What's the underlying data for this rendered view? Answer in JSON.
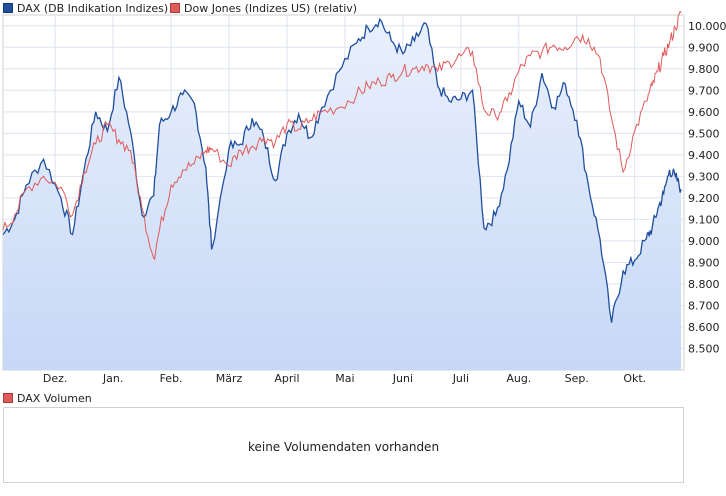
{
  "legend": {
    "dax": {
      "label": "DAX (DB Indikation Indizes)",
      "color": "#1f4f9e"
    },
    "dow": {
      "label": "Dow Jones (Indizes US) (relativ)",
      "color": "#e05a5a"
    }
  },
  "volume": {
    "legend_label": "DAX Volumen",
    "legend_color": "#e05a5a",
    "message": "keine Volumendaten vorhanden"
  },
  "chart_data": {
    "type": "line",
    "y_ticks": [
      "10.000",
      "9.900",
      "9.800",
      "9.700",
      "9.600",
      "9.500",
      "9.400",
      "9.300",
      "9.200",
      "9.100",
      "9.000",
      "8.900",
      "8.800",
      "8.700",
      "8.600",
      "8.500"
    ],
    "ylim": [
      8400,
      10050
    ],
    "x_ticks": [
      "Dez.",
      "Jan.",
      "Feb.",
      "März",
      "April",
      "Mai",
      "Juni",
      "Juli",
      "Aug.",
      "Sep.",
      "Okt."
    ],
    "x_tick_pos": [
      0.5,
      1.5,
      2.5,
      3.5,
      4.5,
      5.5,
      6.5,
      7.5,
      8.5,
      9.5,
      10.5
    ],
    "xlim": [
      -0.4,
      11.35
    ],
    "grid": true,
    "legend_position": "top-left",
    "series": [
      {
        "name": "DAX (DB Indikation Indizes)",
        "color": "#1f4f9e",
        "fill": true,
        "x": [
          -0.4,
          -0.2,
          0.0,
          0.3,
          0.6,
          0.8,
          1.0,
          1.2,
          1.4,
          1.6,
          1.8,
          2.0,
          2.2,
          2.3,
          2.5,
          2.7,
          2.9,
          3.1,
          3.2,
          3.5,
          3.7,
          3.9,
          4.1,
          4.3,
          4.5,
          4.7,
          4.9,
          5.1,
          5.4,
          5.7,
          5.9,
          6.1,
          6.3,
          6.5,
          6.7,
          6.9,
          7.1,
          7.3,
          7.5,
          7.7,
          7.9,
          8.1,
          8.3,
          8.5,
          8.7,
          8.9,
          9.1,
          9.3,
          9.5,
          9.7,
          9.9,
          10.1,
          10.3,
          10.5,
          10.7,
          10.8,
          10.9,
          11.0,
          11.1,
          11.2,
          11.3
        ],
        "values": [
          9030,
          9100,
          9260,
          9380,
          9200,
          9030,
          9330,
          9600,
          9510,
          9760,
          9510,
          9120,
          9210,
          9540,
          9600,
          9680,
          9640,
          9340,
          8960,
          9430,
          9450,
          9570,
          9480,
          9280,
          9500,
          9590,
          9480,
          9620,
          9790,
          9920,
          9990,
          10030,
          9930,
          9870,
          9930,
          10010,
          9720,
          9650,
          9660,
          9700,
          9060,
          9120,
          9330,
          9650,
          9530,
          9780,
          9620,
          9730,
          9560,
          9260,
          9010,
          8620,
          8860,
          8910,
          9010,
          9060,
          9150,
          9220,
          9330,
          9300,
          9240
        ]
      },
      {
        "name": "Dow Jones (Indizes US) (relativ)",
        "color": "#e05a5a",
        "fill": false,
        "x": [
          -0.4,
          -0.2,
          0.0,
          0.3,
          0.6,
          0.8,
          1.0,
          1.2,
          1.4,
          1.6,
          1.8,
          2.0,
          2.2,
          2.3,
          2.5,
          2.7,
          2.9,
          3.1,
          3.2,
          3.5,
          3.7,
          3.9,
          4.1,
          4.3,
          4.5,
          4.7,
          4.9,
          5.1,
          5.4,
          5.7,
          5.9,
          6.1,
          6.3,
          6.5,
          6.7,
          6.9,
          7.1,
          7.3,
          7.5,
          7.7,
          7.9,
          8.1,
          8.3,
          8.5,
          8.7,
          8.9,
          9.1,
          9.3,
          9.5,
          9.7,
          9.9,
          10.1,
          10.3,
          10.5,
          10.7,
          10.8,
          10.9,
          11.0,
          11.1,
          11.2,
          11.3
        ],
        "values": [
          9050,
          9120,
          9240,
          9300,
          9250,
          9120,
          9320,
          9450,
          9540,
          9470,
          9420,
          9150,
          8920,
          9050,
          9260,
          9330,
          9360,
          9420,
          9430,
          9350,
          9420,
          9440,
          9480,
          9460,
          9540,
          9520,
          9560,
          9600,
          9620,
          9680,
          9720,
          9740,
          9760,
          9790,
          9800,
          9820,
          9790,
          9830,
          9860,
          9880,
          9610,
          9580,
          9650,
          9790,
          9860,
          9880,
          9910,
          9900,
          9950,
          9940,
          9850,
          9570,
          9320,
          9510,
          9650,
          9720,
          9790,
          9860,
          9920,
          9990,
          10060
        ]
      }
    ]
  }
}
